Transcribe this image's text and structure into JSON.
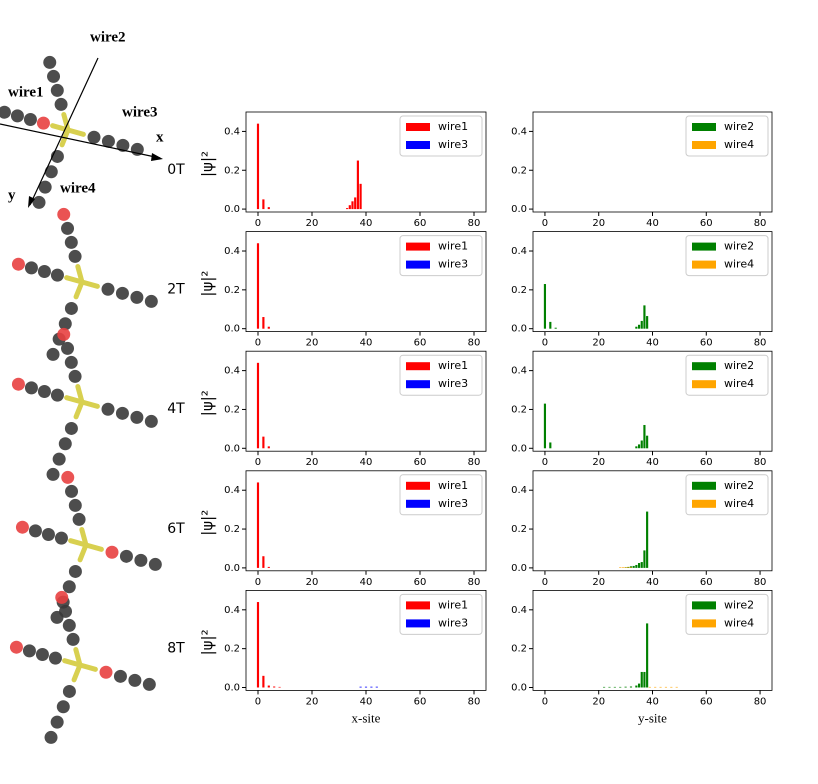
{
  "diagram": {
    "labels": [
      "wire2",
      "wire1",
      "wire3",
      "x",
      "y",
      "wire4"
    ]
  },
  "chart_data": [
    {
      "type": "bar",
      "field": "0T",
      "ylabel": "|ψ|²",
      "legend": "upper right",
      "xlim": [
        -4.44,
        84.44
      ],
      "ylim": [
        -0.015,
        0.5
      ],
      "xticks": [
        0,
        20,
        40,
        60,
        80
      ],
      "yticks": [
        {
          "value": 0,
          "label": "0.0"
        },
        0.2,
        0.4
      ],
      "series": [
        {
          "name": "wire1",
          "color": "#ff0000",
          "x": [
            0,
            2,
            4,
            33,
            34,
            35,
            36,
            37,
            38
          ],
          "values": [
            0.44,
            0.05,
            0.01,
            0.005,
            0.02,
            0.04,
            0.06,
            0.25,
            0.13
          ]
        },
        {
          "name": "wire3",
          "color": "#0000ff",
          "x": [],
          "values": []
        }
      ]
    },
    {
      "type": "bar",
      "legend": "upper right",
      "xlim": [
        -4.44,
        84.44
      ],
      "ylim": [
        -0.015,
        0.5
      ],
      "xticks": [
        0,
        20,
        40,
        60,
        80
      ],
      "yticks": [
        {
          "value": 0,
          "label": "0.0"
        },
        0.2,
        0.4
      ],
      "series": [
        {
          "name": "wire2",
          "color": "#008000",
          "x": [],
          "values": []
        },
        {
          "name": "wire4",
          "color": "#ffa500",
          "x": [],
          "values": []
        }
      ]
    },
    {
      "type": "bar",
      "field": "2T",
      "ylabel": "|ψ|²",
      "legend": "upper right",
      "xlim": [
        -4.44,
        84.44
      ],
      "ylim": [
        -0.015,
        0.5
      ],
      "xticks": [
        0,
        20,
        40,
        60,
        80
      ],
      "yticks": [
        {
          "value": 0,
          "label": "0.0"
        },
        0.2,
        0.4
      ],
      "series": [
        {
          "name": "wire1",
          "color": "#ff0000",
          "x": [
            0,
            2,
            4
          ],
          "values": [
            0.44,
            0.06,
            0.01
          ]
        },
        {
          "name": "wire3",
          "color": "#0000ff",
          "x": [],
          "values": []
        }
      ]
    },
    {
      "type": "bar",
      "legend": "upper right",
      "xlim": [
        -4.44,
        84.44
      ],
      "ylim": [
        -0.015,
        0.5
      ],
      "xticks": [
        0,
        20,
        40,
        60,
        80
      ],
      "yticks": [
        {
          "value": 0,
          "label": "0.0"
        },
        0.2,
        0.4
      ],
      "series": [
        {
          "name": "wire2",
          "color": "#008000",
          "x": [
            0,
            2,
            4,
            34,
            35,
            36,
            37,
            38
          ],
          "values": [
            0.23,
            0.035,
            0.005,
            0.01,
            0.02,
            0.04,
            0.12,
            0.065
          ]
        },
        {
          "name": "wire4",
          "color": "#ffa500",
          "x": [],
          "values": []
        }
      ]
    },
    {
      "type": "bar",
      "field": "4T",
      "ylabel": "|ψ|²",
      "legend": "upper right",
      "xlim": [
        -4.44,
        84.44
      ],
      "ylim": [
        -0.015,
        0.5
      ],
      "xticks": [
        0,
        20,
        40,
        60,
        80
      ],
      "yticks": [
        {
          "value": 0,
          "label": "0.0"
        },
        0.2,
        0.4
      ],
      "series": [
        {
          "name": "wire1",
          "color": "#ff0000",
          "x": [
            0,
            2,
            4
          ],
          "values": [
            0.44,
            0.06,
            0.01
          ]
        },
        {
          "name": "wire3",
          "color": "#0000ff",
          "x": [],
          "values": []
        }
      ]
    },
    {
      "type": "bar",
      "legend": "upper right",
      "xlim": [
        -4.44,
        84.44
      ],
      "ylim": [
        -0.015,
        0.5
      ],
      "xticks": [
        0,
        20,
        40,
        60,
        80
      ],
      "yticks": [
        {
          "value": 0,
          "label": "0.0"
        },
        0.2,
        0.4
      ],
      "series": [
        {
          "name": "wire2",
          "color": "#008000",
          "x": [
            0,
            2,
            34,
            35,
            36,
            37,
            38
          ],
          "values": [
            0.23,
            0.03,
            0.01,
            0.02,
            0.04,
            0.12,
            0.065
          ]
        },
        {
          "name": "wire4",
          "color": "#ffa500",
          "x": [],
          "values": []
        }
      ]
    },
    {
      "type": "bar",
      "field": "6T",
      "ylabel": "|ψ|²",
      "legend": "upper right",
      "xlim": [
        -4.44,
        84.44
      ],
      "ylim": [
        -0.015,
        0.5
      ],
      "xticks": [
        0,
        20,
        40,
        60,
        80
      ],
      "yticks": [
        {
          "value": 0,
          "label": "0.0"
        },
        0.2,
        0.4
      ],
      "series": [
        {
          "name": "wire1",
          "color": "#ff0000",
          "x": [
            0,
            2,
            4
          ],
          "values": [
            0.44,
            0.06,
            0.005
          ]
        },
        {
          "name": "wire3",
          "color": "#0000ff",
          "x": [],
          "values": []
        }
      ]
    },
    {
      "type": "bar",
      "legend": "upper right",
      "xlim": [
        -4.44,
        84.44
      ],
      "ylim": [
        -0.015,
        0.5
      ],
      "xticks": [
        0,
        20,
        40,
        60,
        80
      ],
      "yticks": [
        {
          "value": 0,
          "label": "0.0"
        },
        0.2,
        0.4
      ],
      "series": [
        {
          "name": "wire2",
          "color": "#008000",
          "x": [
            30,
            31,
            32,
            33,
            34,
            35,
            36,
            37,
            38
          ],
          "values": [
            0.003,
            0.005,
            0.008,
            0.01,
            0.015,
            0.025,
            0.03,
            0.09,
            0.29
          ]
        },
        {
          "name": "wire4",
          "color": "#ffa500",
          "x": [
            28,
            29,
            30,
            31,
            32
          ],
          "values": [
            0.003,
            0.003,
            0.003,
            0.003,
            0.003
          ]
        }
      ]
    },
    {
      "type": "bar",
      "field": "8T",
      "ylabel": "|ψ|²",
      "xlabel": "x-site",
      "legend": "upper right",
      "xlim": [
        -4.44,
        84.44
      ],
      "ylim": [
        -0.015,
        0.5
      ],
      "xticks": [
        0,
        20,
        40,
        60,
        80
      ],
      "yticks": [
        {
          "value": 0,
          "label": "0.0"
        },
        0.2,
        0.4
      ],
      "series": [
        {
          "name": "wire1",
          "color": "#ff0000",
          "x": [
            0,
            2,
            4,
            6,
            8
          ],
          "values": [
            0.44,
            0.06,
            0.01,
            0.005,
            0.003
          ]
        },
        {
          "name": "wire3",
          "color": "#0000ff",
          "x": [
            38,
            40,
            42,
            44
          ],
          "values": [
            0.004,
            0.004,
            0.004,
            0.004
          ]
        }
      ]
    },
    {
      "type": "bar",
      "xlabel": "y-site",
      "legend": "upper right",
      "xlim": [
        -4.44,
        84.44
      ],
      "ylim": [
        -0.015,
        0.5
      ],
      "xticks": [
        0,
        20,
        40,
        60,
        80
      ],
      "yticks": [
        {
          "value": 0,
          "label": "0.0"
        },
        0.2,
        0.4
      ],
      "series": [
        {
          "name": "wire2",
          "color": "#008000",
          "x": [
            22,
            24,
            26,
            28,
            30,
            32,
            34,
            35,
            36,
            37,
            38
          ],
          "values": [
            0.003,
            0.003,
            0.003,
            0.003,
            0.004,
            0.005,
            0.01,
            0.02,
            0.08,
            0.08,
            0.33
          ]
        },
        {
          "name": "wire4",
          "color": "#ffa500",
          "x": [
            39,
            41,
            43,
            45,
            47,
            49
          ],
          "values": [
            0.003,
            0.003,
            0.003,
            0.003,
            0.003,
            0.003
          ]
        }
      ]
    }
  ]
}
